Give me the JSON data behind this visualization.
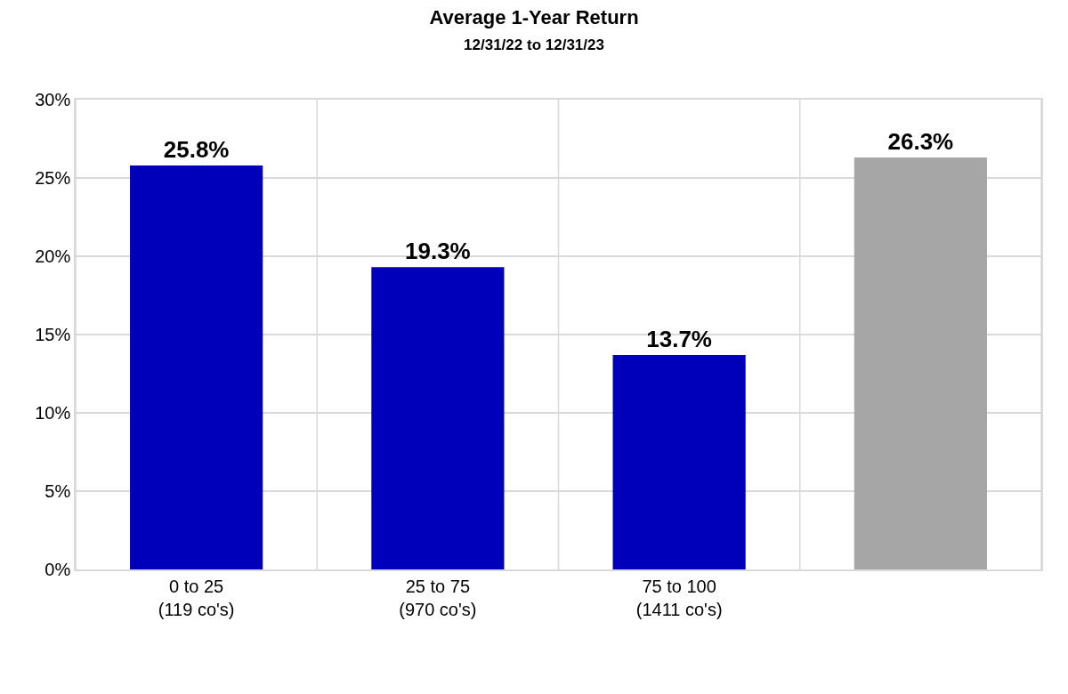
{
  "chart_data": {
    "type": "bar",
    "title": "Average 1-Year Return",
    "subtitle": "12/31/22 to 12/31/23",
    "categories": [
      "0 to 25\n(119 co's)",
      "25 to 75\n(970 co's)",
      "75 to 100\n(1411 co's)",
      null
    ],
    "values": [
      25.8,
      19.3,
      13.7,
      26.3
    ],
    "colors": [
      "#0000bb",
      "#0000bb",
      "#0000bb",
      "#a6a6a6"
    ],
    "value_labels": [
      "25.8%",
      "19.3%",
      "13.7%",
      "26.3%"
    ],
    "ylim": [
      0,
      30
    ],
    "yticks": [
      {
        "value": 0,
        "label": "0%"
      },
      {
        "value": 5,
        "label": "5%"
      },
      {
        "value": 10,
        "label": "10%"
      },
      {
        "value": 15,
        "label": "15%"
      },
      {
        "value": 20,
        "label": "20%"
      },
      {
        "value": 25,
        "label": "25%"
      },
      {
        "value": 30,
        "label": "30%"
      }
    ],
    "grid": true,
    "legend": false
  }
}
